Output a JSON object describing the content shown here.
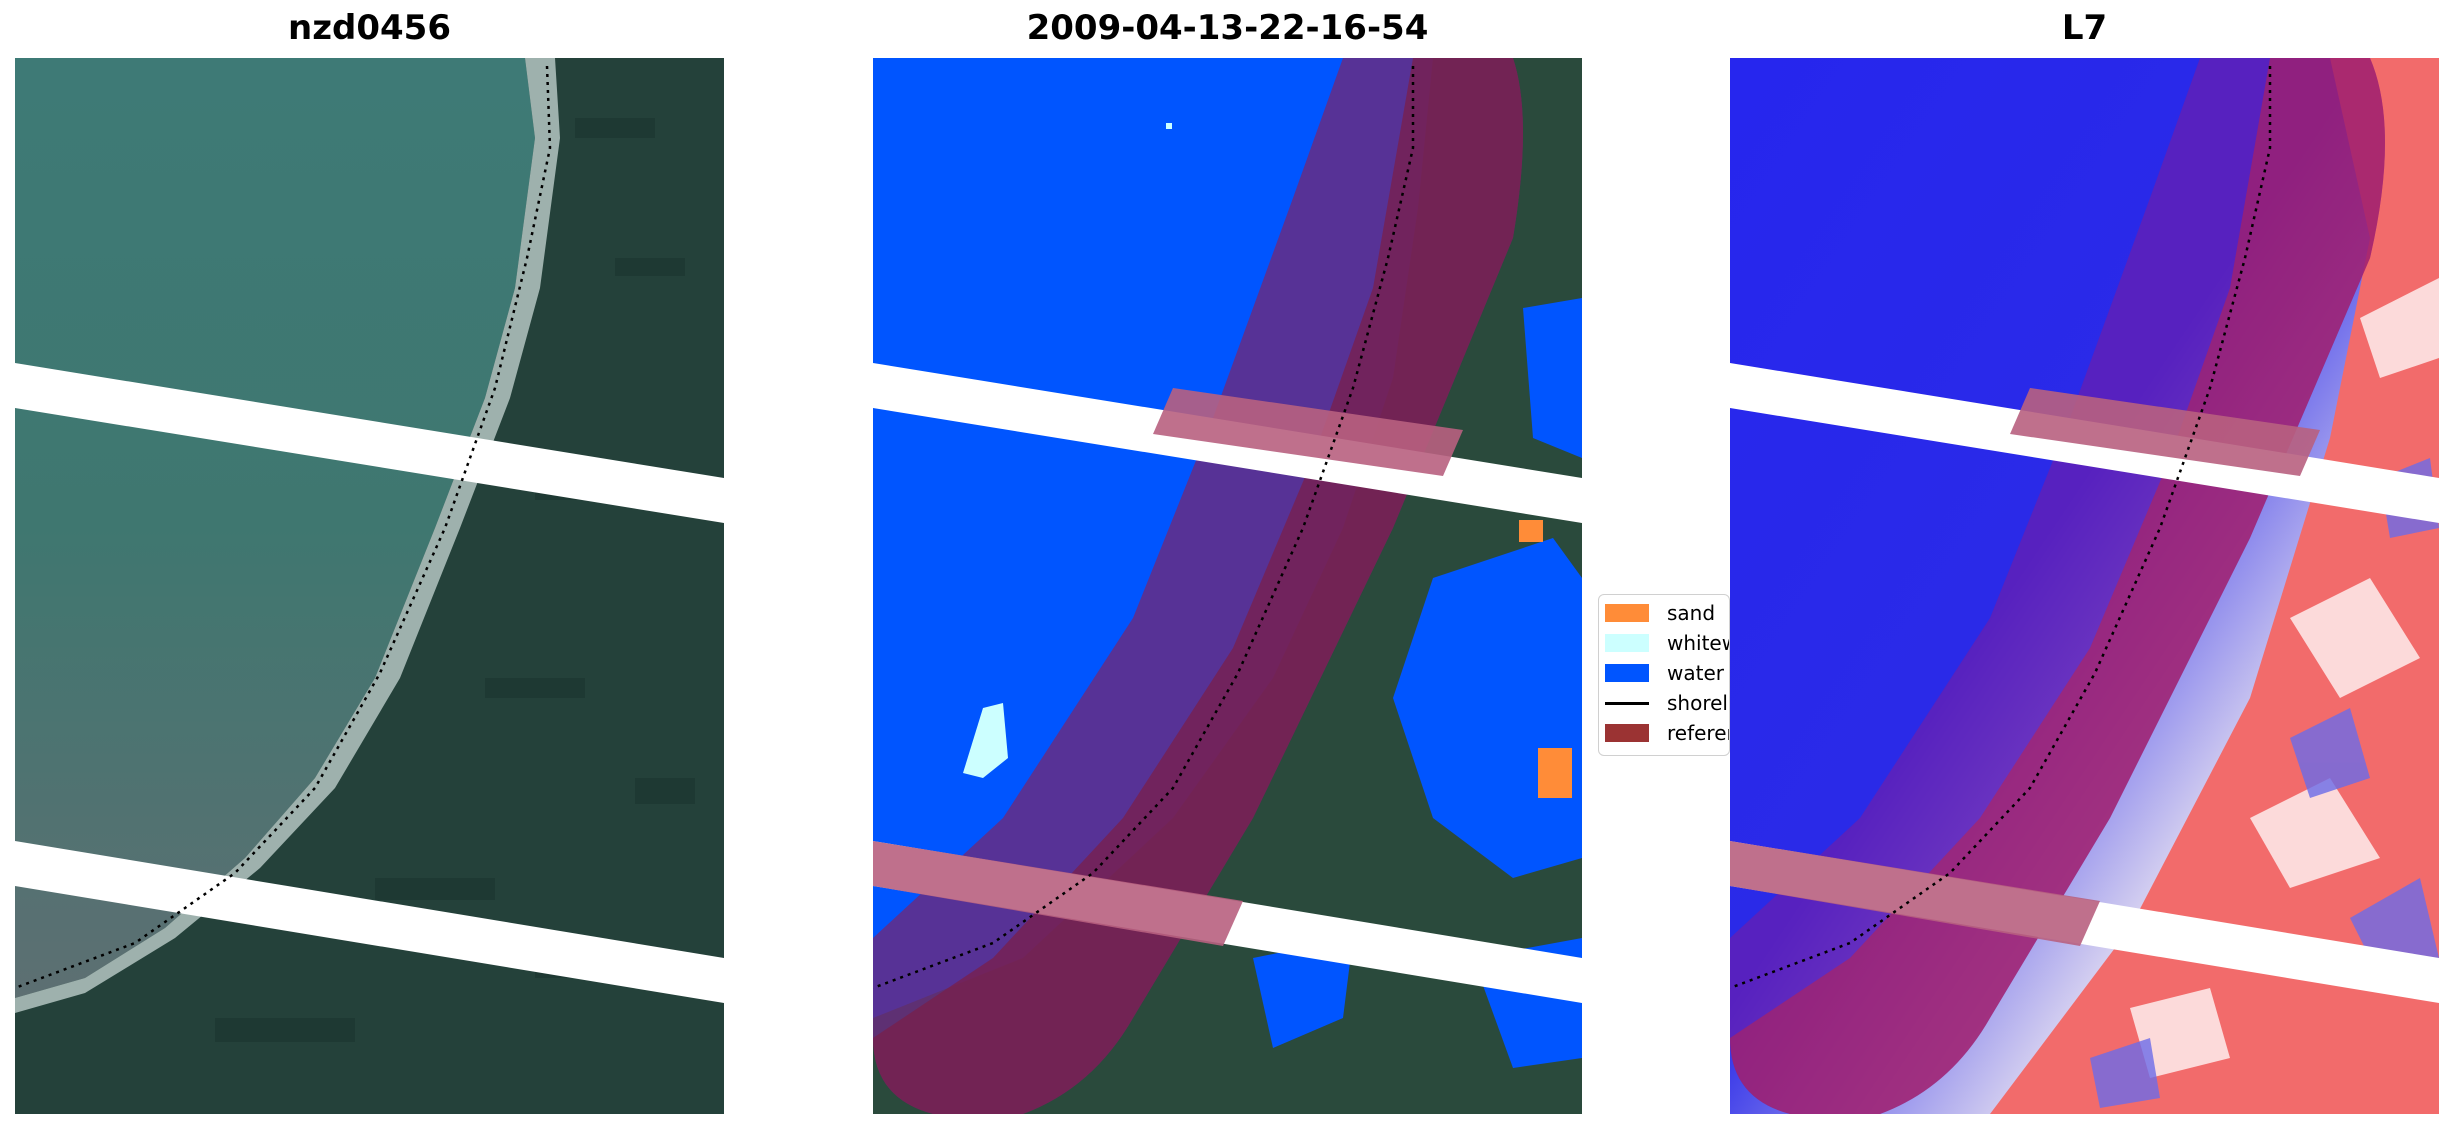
{
  "panels": [
    {
      "title": "nzd0456"
    },
    {
      "title": "2009-04-13-22-16-54"
    },
    {
      "title": "L7"
    }
  ],
  "legend": {
    "items": [
      {
        "label": "sand",
        "color": "#ff8c38",
        "kind": "patch"
      },
      {
        "label": "whitew",
        "color": "#ccffff",
        "kind": "patch"
      },
      {
        "label": "water",
        "color": "#0055ff",
        "kind": "patch"
      },
      {
        "label": "shorel",
        "color": "#000000",
        "kind": "line"
      },
      {
        "label": "referer",
        "color": "#9b3333",
        "kind": "patch"
      }
    ]
  },
  "colors": {
    "water_class": "#0055ff",
    "vegetation": "#2a4a3c",
    "reference_overlay": "#7a1f4a",
    "index_water": "#2a2ae8",
    "index_land": "#f05a5a"
  }
}
